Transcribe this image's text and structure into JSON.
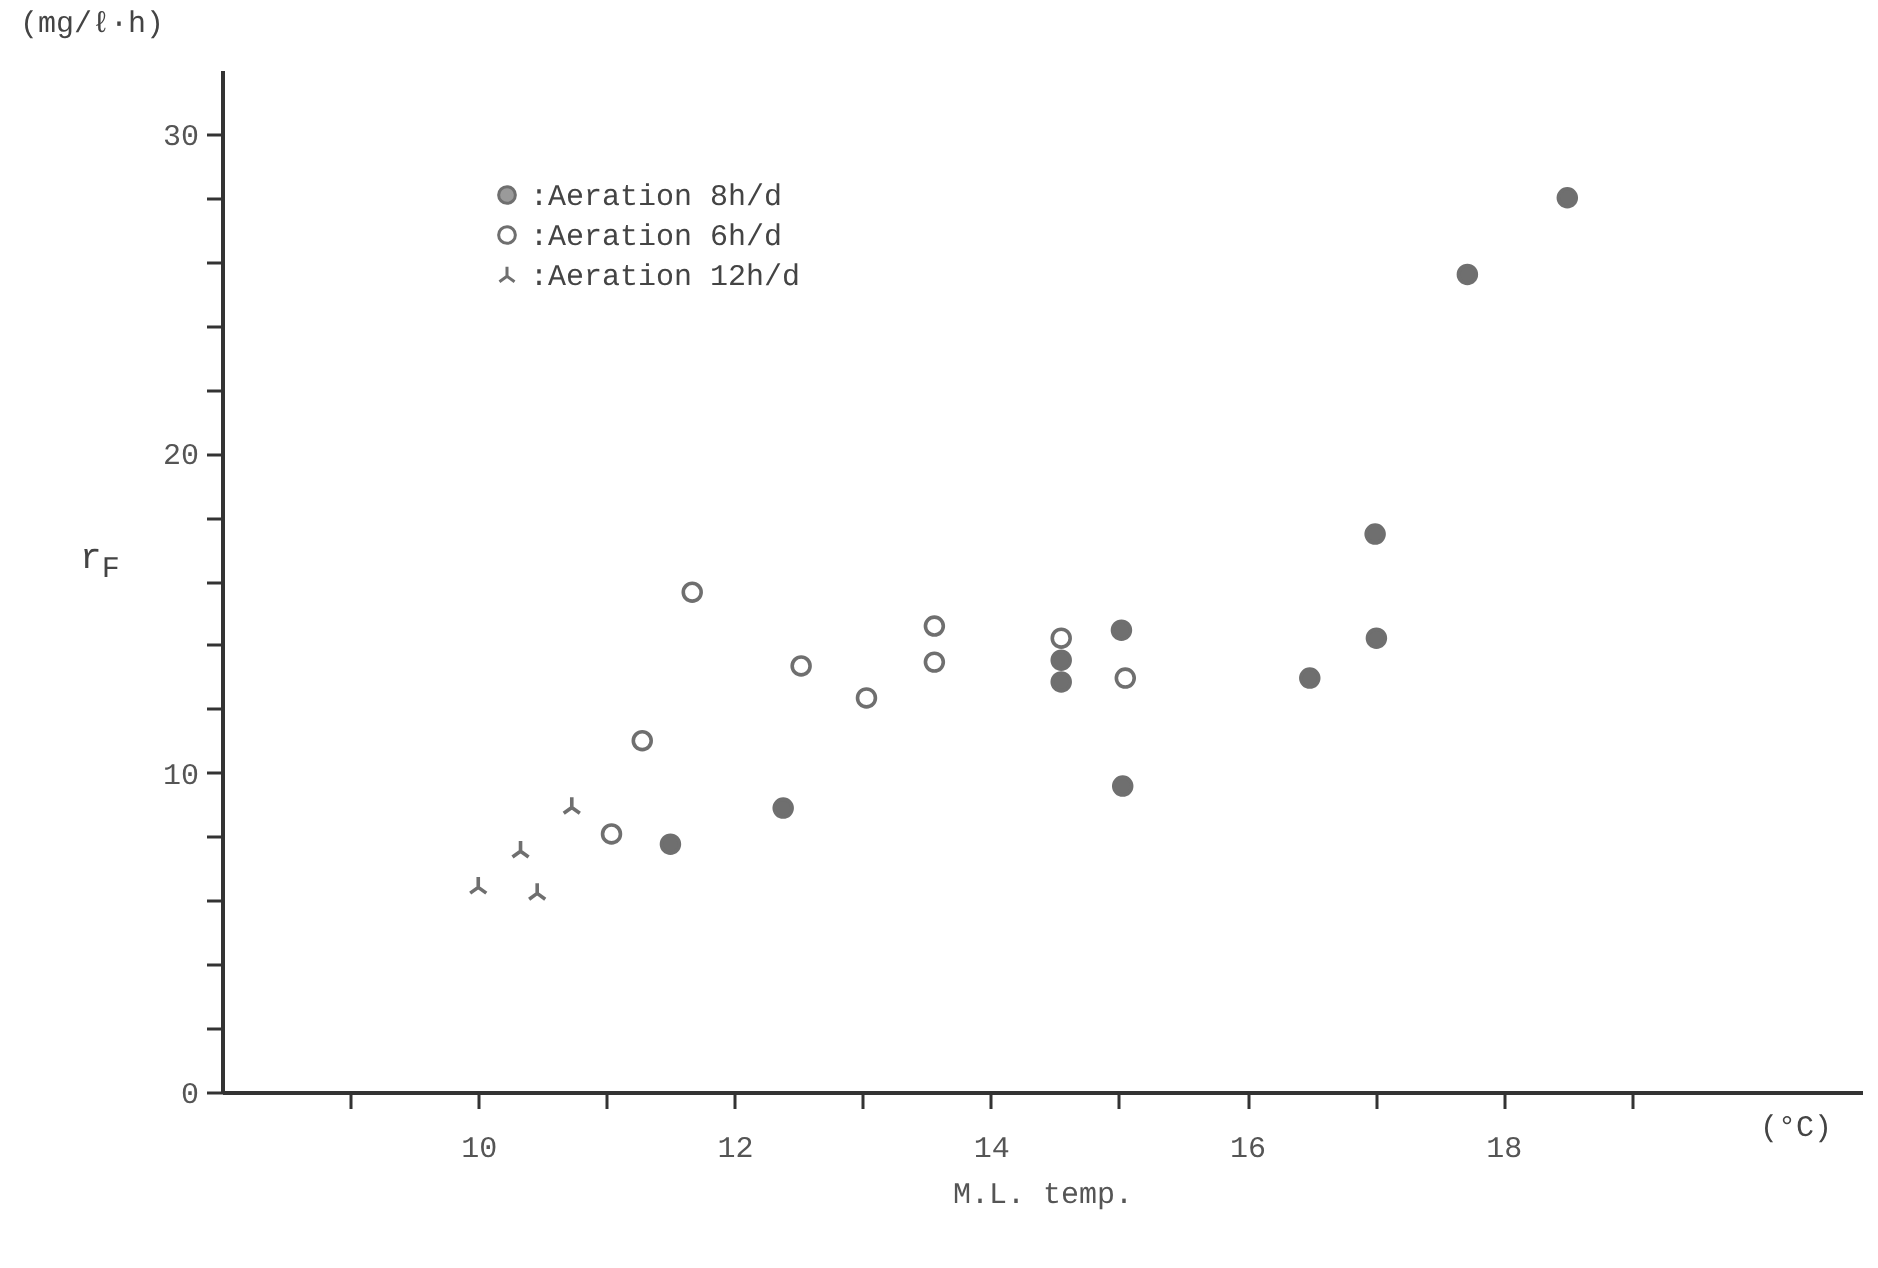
{
  "chart_data": {
    "type": "scatter",
    "xlabel": "M.L. temp.",
    "ylabel": "r$_{F}$",
    "annotations": [
      "(mg/ℓ·h)",
      "(°C)"
    ],
    "xlim": [
      8,
      20.8
    ],
    "ylim": [
      0,
      32
    ],
    "xticks": [
      {
        "value": 9,
        "label": null
      },
      10,
      {
        "value": 11,
        "label": null
      },
      12,
      {
        "value": 13,
        "label": null
      },
      14,
      {
        "value": 15,
        "label": null
      },
      16,
      {
        "value": 17,
        "label": null
      },
      18,
      {
        "value": 19,
        "label": null
      }
    ],
    "yticks": [
      0,
      {
        "value": 2,
        "label": null
      },
      {
        "value": 4,
        "label": null
      },
      {
        "value": 6,
        "label": null
      },
      {
        "value": 8,
        "label": null
      },
      10,
      {
        "value": 12,
        "label": null
      },
      {
        "value": 14,
        "label": null
      },
      {
        "value": 16,
        "label": null
      },
      {
        "value": 18,
        "label": null
      },
      20,
      {
        "value": 22,
        "label": null
      },
      {
        "value": 24,
        "label": null
      },
      {
        "value": 26,
        "label": null
      },
      {
        "value": 28,
        "label": null
      },
      30
    ],
    "grid": false,
    "legend": "top left",
    "series": [
      {
        "name": ":Aeration 8h/d",
        "color": "#333333",
        "marker": "circle",
        "x": [
          11.5,
          12.38,
          14.55,
          14.55,
          15.02,
          15.03,
          16.49,
          17.0,
          17.01,
          17.72,
          18.5
        ],
        "values": [
          7.76,
          8.89,
          13.52,
          12.84,
          14.46,
          9.58,
          12.96,
          17.47,
          14.21,
          25.6,
          28.0
        ]
      },
      {
        "name": ":Aeration 6h/d",
        "color": "#333333",
        "marker": "circle",
        "x": [
          11.04,
          11.28,
          11.67,
          12.52,
          13.03,
          13.56,
          13.56,
          14.55,
          15.05
        ],
        "values": [
          8.08,
          11.0,
          15.65,
          13.34,
          12.34,
          14.59,
          13.46,
          14.21,
          12.96
        ]
      },
      {
        "name": ":Aeration 12h/d",
        "color": "#333333",
        "marker": "cross",
        "x": [
          10.0,
          10.33,
          10.46,
          10.73
        ],
        "values": [
          6.45,
          7.58,
          6.26,
          8.95
        ]
      }
    ]
  }
}
